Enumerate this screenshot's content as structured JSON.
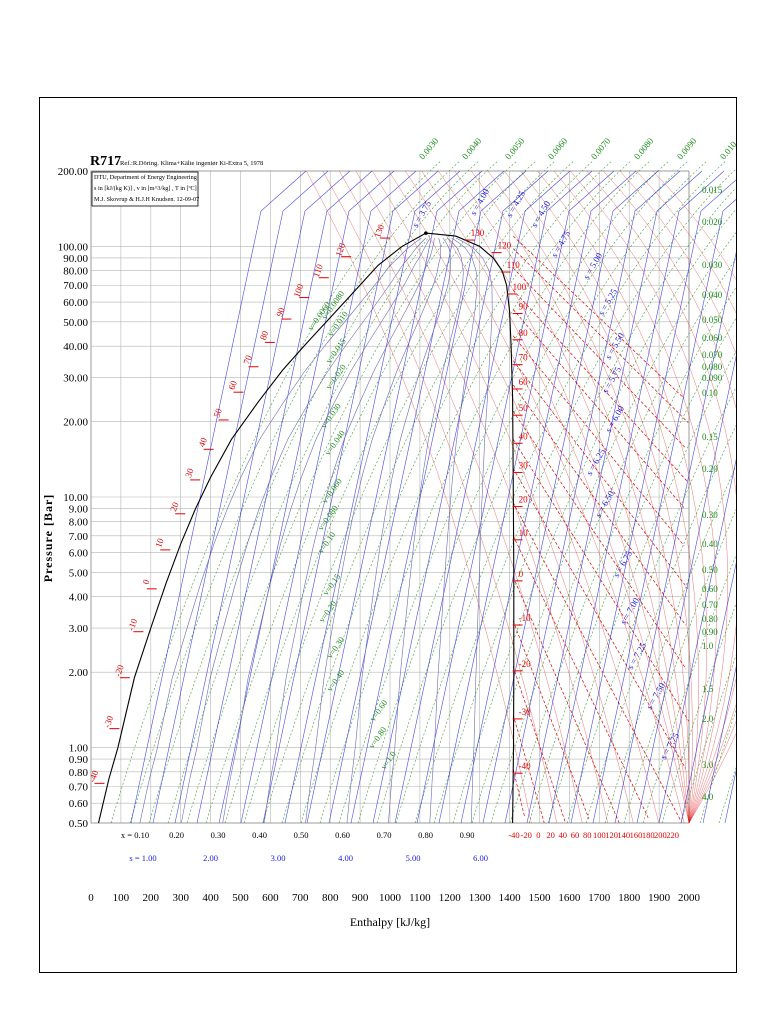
{
  "chart_data": {
    "type": "line",
    "title": "R717",
    "reference": "Ref.:R.Döring. Klima+Kälte ingeniør Ki-Extra 5, 1978",
    "info_box": [
      "DTU, Department of Energy Engineering",
      "s in [kJ/(kg K)] , v in [m^3/kg] , T in [ºC]",
      "M.J. Skovrup & H.J.H Knudsen. 12-09-07"
    ],
    "xlabel": "Enthalpy [kJ/kg]",
    "ylabel": "Pressure [Bar]",
    "xlim": [
      0,
      2000
    ],
    "ylim": [
      0.5,
      200
    ],
    "yscale": "log",
    "x_ticks": [
      0,
      100,
      200,
      300,
      400,
      500,
      600,
      700,
      800,
      900,
      1000,
      1100,
      1200,
      1300,
      1400,
      1500,
      1600,
      1700,
      1800,
      1900,
      2000
    ],
    "y_ticks": [
      {
        "value": 0.5,
        "label": "0.50"
      },
      {
        "value": 0.6,
        "label": "0.60"
      },
      {
        "value": 0.7,
        "label": "0.70"
      },
      {
        "value": 0.8,
        "label": "0.80"
      },
      {
        "value": 0.9,
        "label": "0.90"
      },
      {
        "value": 1.0,
        "label": "1.00"
      },
      {
        "value": 2.0,
        "label": "2.00"
      },
      {
        "value": 3.0,
        "label": "3.00"
      },
      {
        "value": 4.0,
        "label": "4.00"
      },
      {
        "value": 5.0,
        "label": "5.00"
      },
      {
        "value": 6.0,
        "label": "6.00"
      },
      {
        "value": 7.0,
        "label": "7.00"
      },
      {
        "value": 8.0,
        "label": "8.00"
      },
      {
        "value": 9.0,
        "label": "9.00"
      },
      {
        "value": 10.0,
        "label": "10.00"
      },
      {
        "value": 20.0,
        "label": "20.00"
      },
      {
        "value": 30.0,
        "label": "30.00"
      },
      {
        "value": 40.0,
        "label": "40.00"
      },
      {
        "value": 50.0,
        "label": "50.00"
      },
      {
        "value": 60.0,
        "label": "60.00"
      },
      {
        "value": 70.0,
        "label": "70.00"
      },
      {
        "value": 80.0,
        "label": "80.00"
      },
      {
        "value": 90.0,
        "label": "90.00"
      },
      {
        "value": 100.0,
        "label": "100.00"
      },
      {
        "value": 200.0,
        "label": "200.00"
      }
    ],
    "saturation_liquid": [
      [
        25,
        0.5
      ],
      [
        60,
        0.75
      ],
      [
        90,
        1.0
      ],
      [
        145,
        1.9
      ],
      [
        200,
        3.0
      ],
      [
        250,
        4.5
      ],
      [
        300,
        6.5
      ],
      [
        350,
        9.0
      ],
      [
        400,
        12.0
      ],
      [
        470,
        17.0
      ],
      [
        560,
        24.0
      ],
      [
        640,
        32.0
      ],
      [
        720,
        41.0
      ],
      [
        800,
        52.0
      ],
      [
        880,
        66.0
      ],
      [
        960,
        84.0
      ],
      [
        1040,
        100.0
      ],
      [
        1120,
        113.0
      ]
    ],
    "saturation_vapor": [
      [
        1120,
        113.0
      ],
      [
        1220,
        110.0
      ],
      [
        1300,
        100.0
      ],
      [
        1345,
        90.0
      ],
      [
        1375,
        80.0
      ],
      [
        1390,
        70.0
      ],
      [
        1400,
        55.0
      ],
      [
        1405,
        40.0
      ],
      [
        1410,
        25.0
      ],
      [
        1412,
        12.0
      ],
      [
        1414,
        5.0
      ],
      [
        1414,
        2.0
      ],
      [
        1413,
        1.0
      ],
      [
        1410,
        0.5
      ]
    ],
    "critical_point": {
      "h": 1120,
      "p": 113.0
    },
    "temp_liquid_labels": [
      {
        "t": -40,
        "h": 25,
        "p": 0.72,
        "label": "-40"
      },
      {
        "t": -30,
        "h": 75,
        "p": 1.19,
        "label": "-30"
      },
      {
        "t": -20,
        "h": 110,
        "p": 1.9,
        "label": "-20"
      },
      {
        "t": -10,
        "h": 155,
        "p": 2.9,
        "label": "-10"
      },
      {
        "t": 0,
        "h": 200,
        "p": 4.3,
        "label": "0"
      },
      {
        "t": 10,
        "h": 245,
        "p": 6.15,
        "label": "10"
      },
      {
        "t": 20,
        "h": 295,
        "p": 8.57,
        "label": "20"
      },
      {
        "t": 30,
        "h": 345,
        "p": 11.7,
        "label": "30"
      },
      {
        "t": 40,
        "h": 390,
        "p": 15.5,
        "label": "40"
      },
      {
        "t": 50,
        "h": 440,
        "p": 20.3,
        "label": "50"
      },
      {
        "t": 60,
        "h": 490,
        "p": 26.2,
        "label": "60"
      },
      {
        "t": 70,
        "h": 540,
        "p": 33.1,
        "label": "70"
      },
      {
        "t": 80,
        "h": 595,
        "p": 41.4,
        "label": "80"
      },
      {
        "t": 90,
        "h": 650,
        "p": 51.3,
        "label": "90"
      },
      {
        "t": 100,
        "h": 710,
        "p": 62.5,
        "label": "100"
      },
      {
        "t": 110,
        "h": 775,
        "p": 75.0,
        "label": "110"
      },
      {
        "t": 120,
        "h": 850,
        "p": 91.0,
        "label": "120"
      },
      {
        "t": 130,
        "h": 980,
        "p": 108.0,
        "label": "130"
      }
    ],
    "temp_vapor_labels": [
      {
        "t": 130,
        "h": 1250,
        "p": 110,
        "label": "130"
      },
      {
        "t": 120,
        "h": 1340,
        "p": 98,
        "label": "120"
      },
      {
        "t": 110,
        "h": 1370,
        "p": 82,
        "label": "110"
      },
      {
        "t": 100,
        "h": 1390,
        "p": 67,
        "label": "100"
      },
      {
        "t": 90,
        "h": 1410,
        "p": 56,
        "label": "90"
      },
      {
        "t": 80,
        "h": 1410,
        "p": 44,
        "label": "80"
      },
      {
        "t": 70,
        "h": 1410,
        "p": 35,
        "label": "70"
      },
      {
        "t": 60,
        "h": 1410,
        "p": 28,
        "label": "60"
      },
      {
        "t": 50,
        "h": 1410,
        "p": 22,
        "label": "50"
      },
      {
        "t": 40,
        "h": 1410,
        "p": 17,
        "label": "40"
      },
      {
        "t": 30,
        "h": 1410,
        "p": 13,
        "label": "30"
      },
      {
        "t": 20,
        "h": 1410,
        "p": 9.5,
        "label": "20"
      },
      {
        "t": 10,
        "h": 1410,
        "p": 7.0,
        "label": "10"
      },
      {
        "t": 0,
        "h": 1410,
        "p": 4.8,
        "label": "0"
      },
      {
        "t": -10,
        "h": 1410,
        "p": 3.2,
        "label": "-10"
      },
      {
        "t": -20,
        "h": 1410,
        "p": 2.1,
        "label": "-20"
      },
      {
        "t": -30,
        "h": 1410,
        "p": 1.35,
        "label": "-30"
      },
      {
        "t": -40,
        "h": 1410,
        "p": 0.82,
        "label": "-40"
      }
    ],
    "bottom_temp_labels": [
      "-40",
      "-20",
      "0",
      "20",
      "40",
      "60",
      "80",
      "100",
      "120",
      "140",
      "160",
      "180",
      "200",
      "220"
    ],
    "quality_labels": [
      "x = 0.10",
      "0.20",
      "0.30",
      "0.40",
      "0.50",
      "0.60",
      "0.70",
      "0.80",
      "0.90"
    ],
    "entropy_bottom_labels": [
      "s = 1.00",
      "2.00",
      "3.00",
      "4.00",
      "5.00",
      "6.00"
    ],
    "entropy_top_labels": [
      "s = 3.75",
      "s = 4.00",
      "s = 4.25",
      "s = 4.50",
      "s = 4.75",
      "s = 5.00",
      "s = 5.25",
      "s = 5.50",
      "s = 5.75",
      "s = 6.00",
      "s = 6.25",
      "s = 6.50",
      "s = 6.75",
      "s = 7.00",
      "s = 7.25",
      "s = 7.50",
      "s = 7.75"
    ],
    "volume_top_labels": [
      "0.0030",
      "0.0040",
      "0.0050",
      "0.0060",
      "0.0070",
      "0.0080",
      "0.0090",
      "0.010"
    ],
    "volume_right_labels": [
      "0.015",
      "0.020",
      "0.030",
      "0.040",
      "0.050",
      "0.060",
      "0.070",
      "0.080",
      "0.090",
      "0.10",
      "0.15",
      "0.20",
      "0.30",
      "0.40",
      "0.50",
      "0.60",
      "0.70",
      "0.80",
      "0.90",
      "1.0",
      "1.5",
      "2.0",
      "3.0",
      "4.0"
    ],
    "volume_inner_labels": [
      "v=0.0060",
      "v=0.0080",
      "v=0.010",
      "v=0.015",
      "v=0.020",
      "v=0.030",
      "v=0.040",
      "v=0.060",
      "v=0.080",
      "v=0.10",
      "v=0.15",
      "v=0.20",
      "v=0.30",
      "v=0.40",
      "v=0.60",
      "v=0.80",
      "v=1.0"
    ],
    "colors": {
      "saturation": "#000000",
      "isotherm": "#e00000",
      "isentrope": "#1a1adc",
      "isochore": "#1c8c1c",
      "quality": "#6a6ab4",
      "grid": "#b4b4b4"
    }
  }
}
